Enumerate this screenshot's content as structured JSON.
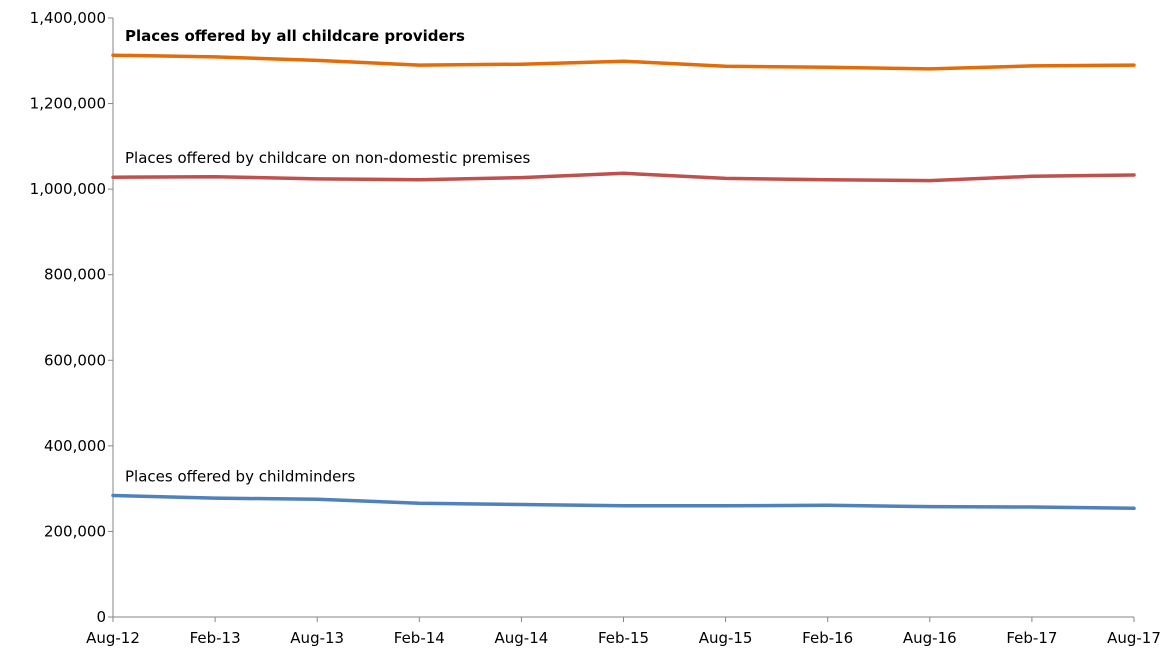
{
  "chart_data": {
    "type": "line",
    "title": "",
    "xlabel": "",
    "ylabel": "",
    "x": [
      "Aug-12",
      "Feb-13",
      "Aug-13",
      "Feb-14",
      "Aug-14",
      "Feb-15",
      "Aug-15",
      "Feb-16",
      "Aug-16",
      "Feb-17",
      "Aug-17"
    ],
    "ylim": [
      0,
      1400000
    ],
    "yticks": [
      0,
      200000,
      400000,
      600000,
      800000,
      1000000,
      1200000,
      1400000
    ],
    "ytick_labels": [
      "0",
      "200,000",
      "400,000",
      "600,000",
      "800,000",
      "1,000,000",
      "1,200,000",
      "1,400,000"
    ],
    "grid": false,
    "legend": "none (series labelled directly above lines)",
    "series": [
      {
        "name": "Places offered by all childcare providers",
        "color": "#e36c09",
        "label_bold": true,
        "values": [
          1313000,
          1309000,
          1301000,
          1290000,
          1292000,
          1299000,
          1287000,
          1285000,
          1281000,
          1288000,
          1290000
        ]
      },
      {
        "name": "Places offered by childcare on non-domestic premises",
        "color": "#c0504d",
        "label_bold": false,
        "values": [
          1028000,
          1029000,
          1024000,
          1022000,
          1027000,
          1037000,
          1025000,
          1022000,
          1020000,
          1030000,
          1033000
        ]
      },
      {
        "name": "Places offered by childminders",
        "color": "#4f81bd",
        "label_bold": false,
        "values": [
          284000,
          278000,
          275000,
          266000,
          263000,
          260000,
          260000,
          261000,
          258000,
          257000,
          254000
        ]
      }
    ]
  }
}
